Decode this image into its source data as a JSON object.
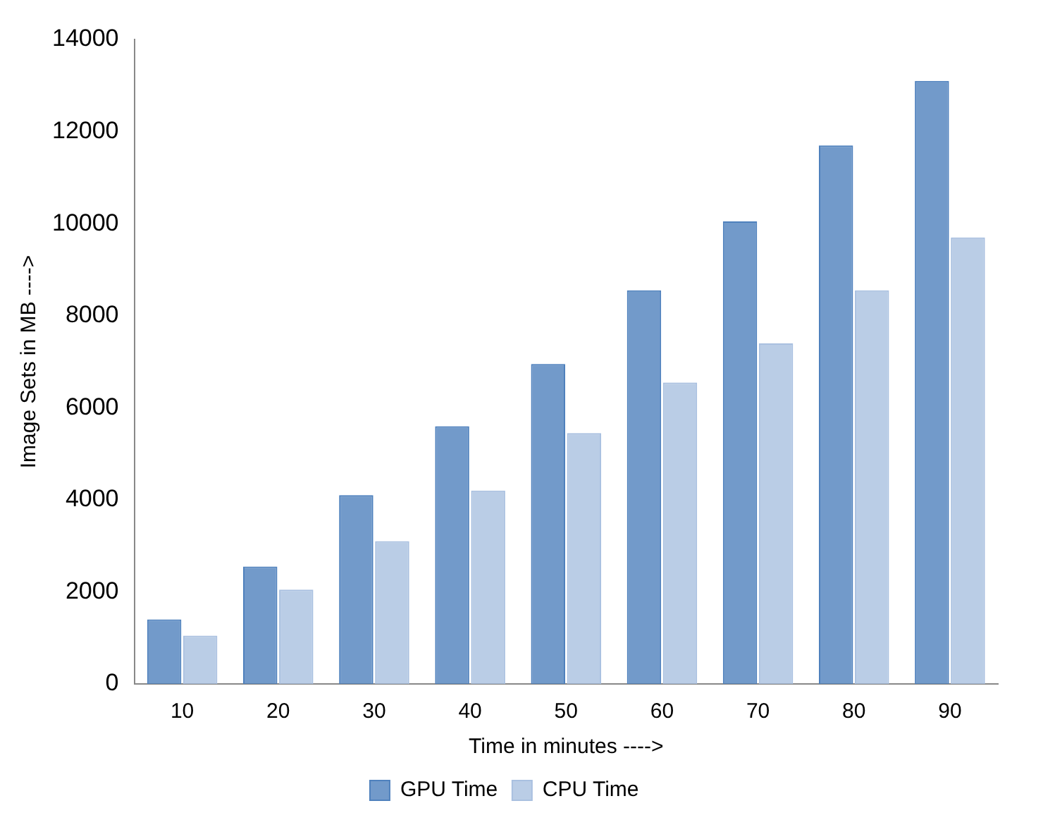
{
  "chart_data": {
    "type": "bar",
    "xlabel": "Time in minutes ---->",
    "ylabel": "Image Sets in MB ---->",
    "categories": [
      "10",
      "20",
      "30",
      "40",
      "50",
      "60",
      "70",
      "80",
      "90"
    ],
    "series": [
      {
        "name": "GPU Time",
        "color": "#4f81bd",
        "values": [
          1400,
          2550,
          4100,
          5600,
          6950,
          8550,
          10050,
          11700,
          13100
        ]
      },
      {
        "name": "CPU Time",
        "color": "#a9c0e0",
        "values": [
          1050,
          2050,
          3100,
          4200,
          5450,
          6550,
          7400,
          8550,
          9700
        ]
      }
    ],
    "ylim": [
      0,
      14000
    ],
    "yticks": [
      0,
      2000,
      4000,
      6000,
      8000,
      10000,
      12000,
      14000
    ],
    "grid": false,
    "legend": "bottom"
  }
}
